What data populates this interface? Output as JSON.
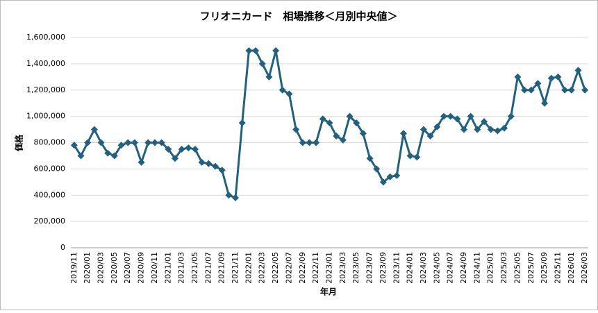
{
  "chart_data": {
    "type": "line",
    "title": "フリオニカード　相場推移＜月別中央値＞",
    "x_label": "年月",
    "y_label": "価格",
    "categories": [
      "2019/11",
      null,
      "2020/01",
      null,
      "2020/03",
      null,
      "2020/05",
      null,
      "2020/07",
      null,
      "2020/09",
      null,
      "2020/11",
      null,
      "2021/01",
      null,
      "2021/03",
      null,
      "2021/05",
      null,
      "2021/07",
      null,
      "2021/09",
      null,
      "2021/11",
      null,
      "2022/01",
      null,
      "2022/03",
      null,
      "2022/05",
      null,
      "2022/07",
      null,
      "2022/09",
      null,
      "2022/11",
      null,
      "2023/01",
      null,
      "2023/03",
      null,
      "2023/05",
      null,
      "2023/07",
      null,
      "2023/09",
      null,
      "2023/11",
      null,
      "2024/01",
      null,
      "2024/03",
      null,
      "2024/05",
      null,
      "2024/07",
      null,
      "2024/09",
      null,
      "2024/11",
      null,
      "2025/01",
      null,
      "2025/03",
      null,
      "2025/05",
      null,
      "2025/07",
      null,
      "2025/09",
      null,
      "2025/11",
      null,
      "2026/01",
      null,
      "2026/03"
    ],
    "series": [
      {
        "name": "価格",
        "color": "#21607f",
        "values": [
          780000,
          700000,
          800000,
          900000,
          800000,
          720000,
          700000,
          780000,
          800000,
          800000,
          650000,
          800000,
          800000,
          800000,
          750000,
          680000,
          750000,
          760000,
          750000,
          650000,
          640000,
          620000,
          590000,
          400000,
          380000,
          950000,
          1500000,
          1500000,
          1400000,
          1300000,
          1500000,
          1200000,
          1170000,
          900000,
          800000,
          800000,
          800000,
          980000,
          950000,
          850000,
          820000,
          1000000,
          950000,
          870000,
          680000,
          600000,
          500000,
          540000,
          550000,
          870000,
          700000,
          690000,
          900000,
          850000,
          920000,
          1000000,
          1000000,
          980000,
          900000,
          1000000,
          900000,
          960000,
          900000,
          890000,
          910000,
          1000000,
          1300000,
          1200000,
          1200000,
          1250000,
          1100000,
          1290000,
          1300000,
          1200000,
          1200000,
          1350000,
          1200000
        ]
      }
    ],
    "ylim": [
      0,
      1600000
    ],
    "yticks": [
      0,
      {
        "value": 200000,
        "label": "200,000"
      },
      {
        "value": 400000,
        "label": "400,000"
      },
      {
        "value": 600000,
        "label": "600,000"
      },
      {
        "value": 800000,
        "label": "800,000"
      },
      {
        "value": 1000000,
        "label": "1,000,000"
      },
      {
        "value": 1200000,
        "label": "1,200,000"
      },
      {
        "value": 1400000,
        "label": "1,400,000"
      },
      {
        "value": 1600000,
        "label": "1,600,000"
      }
    ],
    "grid": true
  }
}
